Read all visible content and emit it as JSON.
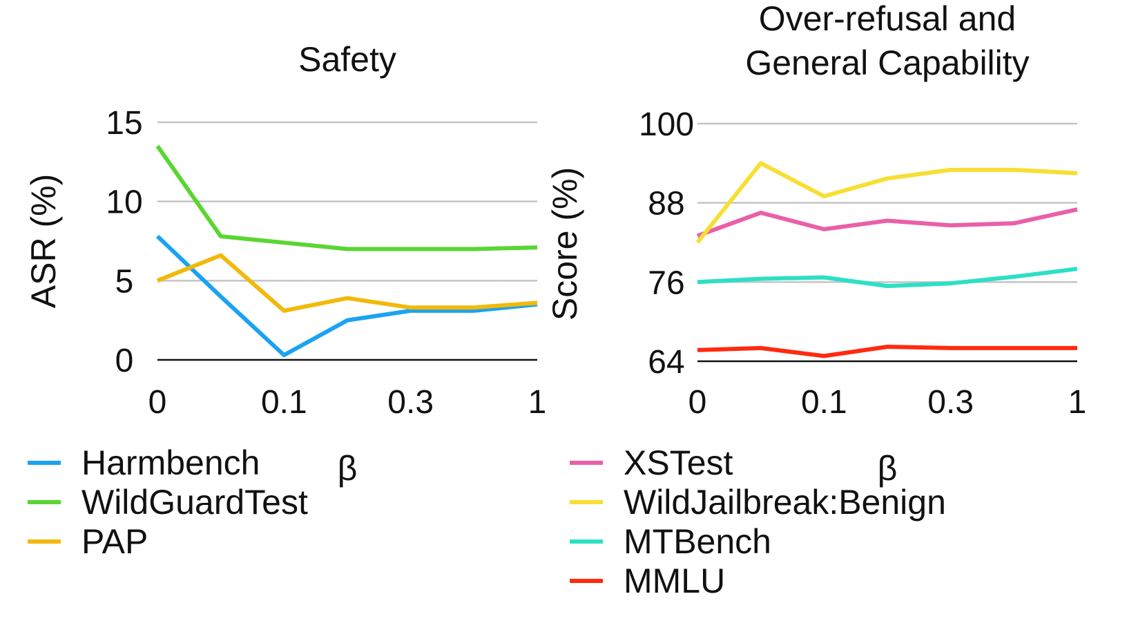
{
  "chart_data": [
    {
      "type": "line",
      "title": "Safety",
      "xlabel": "β",
      "ylabel": "ASR (%)",
      "x_ticks": [
        "0",
        "0.1",
        "0.3",
        "1"
      ],
      "x_tick_positions": [
        0,
        2,
        4,
        6
      ],
      "x": [
        0,
        1,
        2,
        3,
        4,
        5,
        6
      ],
      "y_ticks": [
        "15",
        "10",
        "5",
        "0"
      ],
      "y_tick_values": [
        15,
        10,
        5,
        0
      ],
      "ylim": [
        0,
        15
      ],
      "series": [
        {
          "name": "Harmbench",
          "color": "#1aa3f0",
          "values": [
            7.8,
            4.0,
            0.3,
            2.5,
            3.1,
            3.1,
            3.5
          ]
        },
        {
          "name": "WildGuardTest",
          "color": "#5ad632",
          "values": [
            13.5,
            7.8,
            7.4,
            7.0,
            7.0,
            7.0,
            7.1
          ]
        },
        {
          "name": "PAP",
          "color": "#f2b90a",
          "values": [
            5.0,
            6.6,
            3.1,
            3.9,
            3.3,
            3.3,
            3.6
          ]
        }
      ]
    },
    {
      "type": "line",
      "title": "Over-refusal and General Capability",
      "title_lines": [
        "Over-refusal and",
        "General Capability"
      ],
      "xlabel": "β",
      "ylabel": "Score (%)",
      "x_ticks": [
        "0",
        "0.1",
        "0.3",
        "1"
      ],
      "x_tick_positions": [
        0,
        2,
        4,
        6
      ],
      "x": [
        0,
        1,
        2,
        3,
        4,
        5,
        6
      ],
      "y_ticks": [
        "100",
        "88",
        "76",
        "64"
      ],
      "y_tick_values": [
        100,
        88,
        76,
        64
      ],
      "ylim": [
        64,
        100
      ],
      "series": [
        {
          "name": "XSTest",
          "color": "#ea5fa8",
          "values": [
            83.0,
            86.5,
            84.0,
            85.3,
            84.6,
            84.9,
            87.0
          ]
        },
        {
          "name": "WildJailbreak:Benign",
          "color": "#f7df33",
          "values": [
            82.0,
            94.0,
            89.0,
            91.7,
            93.0,
            93.0,
            92.5
          ]
        },
        {
          "name": "MTBench",
          "color": "#2de0c4",
          "values": [
            76.0,
            76.5,
            76.7,
            75.4,
            75.8,
            76.8,
            78.0
          ]
        },
        {
          "name": "MMLU",
          "color": "#ff2a0f",
          "values": [
            65.7,
            66.0,
            64.8,
            66.2,
            66.0,
            66.0,
            66.0
          ]
        }
      ]
    }
  ]
}
